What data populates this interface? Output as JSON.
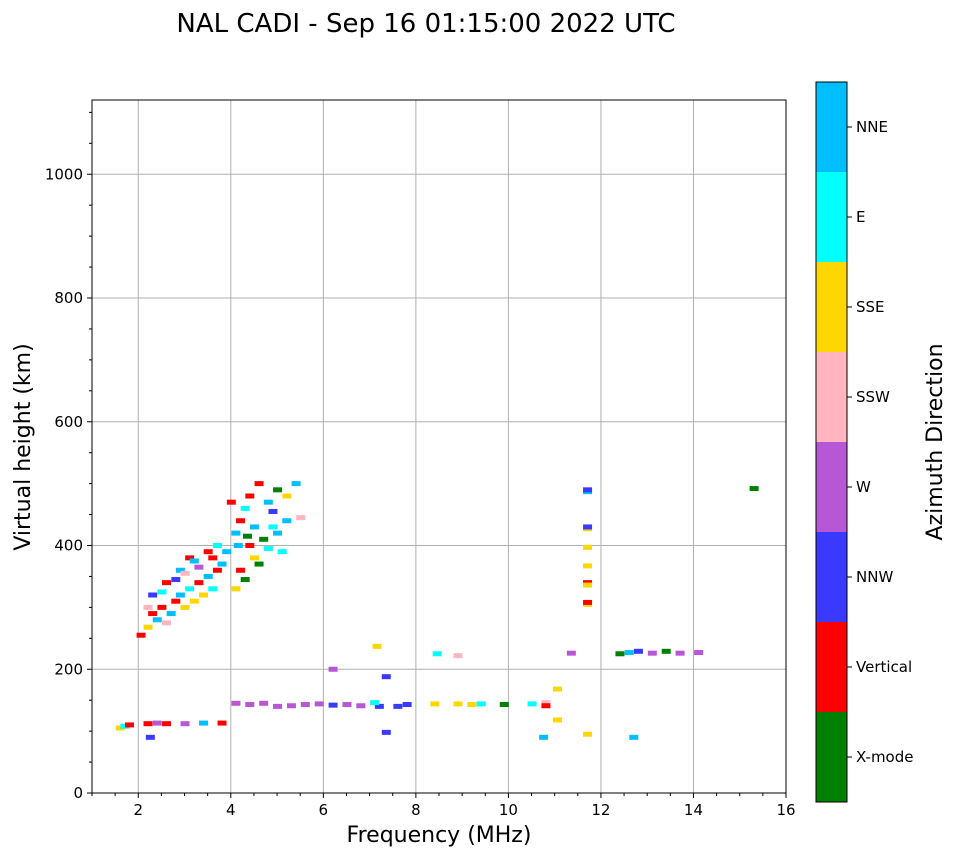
{
  "title": "NAL CADI - Sep 16 01:15:00 2022 UTC",
  "chart_data": {
    "type": "scatter",
    "title": "NAL CADI - Sep 16 01:15:00 2022 UTC",
    "xlabel": "Frequency (MHz)",
    "ylabel": "Virtual height (km)",
    "xlim": [
      1,
      16
    ],
    "ylim": [
      0,
      1120
    ],
    "xticks": [
      2,
      4,
      6,
      8,
      10,
      12,
      14,
      16
    ],
    "yticks": [
      0,
      200,
      400,
      600,
      800,
      1000
    ],
    "grid": true,
    "colorbar": {
      "label": "Azimuth Direction",
      "categories": [
        {
          "name": "X-mode",
          "color": "#008000"
        },
        {
          "name": "Vertical",
          "color": "#ff0000"
        },
        {
          "name": "NNW",
          "color": "#3a3aff"
        },
        {
          "name": "W",
          "color": "#b857d6"
        },
        {
          "name": "SSW",
          "color": "#ffb6c1"
        },
        {
          "name": "SSE",
          "color": "#ffd700"
        },
        {
          "name": "E",
          "color": "#00ffff"
        },
        {
          "name": "NNE",
          "color": "#00bfff"
        }
      ]
    },
    "points": [
      {
        "f": 1.6,
        "h": 105,
        "az": "SSE"
      },
      {
        "f": 1.7,
        "h": 108,
        "az": "E"
      },
      {
        "f": 1.8,
        "h": 110,
        "az": "Vertical"
      },
      {
        "f": 2.2,
        "h": 112,
        "az": "Vertical"
      },
      {
        "f": 2.4,
        "h": 113,
        "az": "W"
      },
      {
        "f": 2.6,
        "h": 112,
        "az": "Vertical"
      },
      {
        "f": 3.0,
        "h": 112,
        "az": "W"
      },
      {
        "f": 3.4,
        "h": 113,
        "az": "NNE"
      },
      {
        "f": 3.8,
        "h": 113,
        "az": "Vertical"
      },
      {
        "f": 2.25,
        "h": 90,
        "az": "NNW"
      },
      {
        "f": 2.05,
        "h": 255,
        "az": "Vertical"
      },
      {
        "f": 2.2,
        "h": 268,
        "az": "SSE"
      },
      {
        "f": 2.3,
        "h": 290,
        "az": "Vertical"
      },
      {
        "f": 2.4,
        "h": 280,
        "az": "NNE"
      },
      {
        "f": 2.5,
        "h": 300,
        "az": "Vertical"
      },
      {
        "f": 2.6,
        "h": 275,
        "az": "SSW"
      },
      {
        "f": 2.7,
        "h": 290,
        "az": "NNE"
      },
      {
        "f": 2.8,
        "h": 310,
        "az": "Vertical"
      },
      {
        "f": 2.9,
        "h": 320,
        "az": "NNE"
      },
      {
        "f": 3.0,
        "h": 300,
        "az": "SSE"
      },
      {
        "f": 3.1,
        "h": 330,
        "az": "E"
      },
      {
        "f": 3.2,
        "h": 310,
        "az": "SSE"
      },
      {
        "f": 3.3,
        "h": 340,
        "az": "Vertical"
      },
      {
        "f": 3.4,
        "h": 320,
        "az": "SSE"
      },
      {
        "f": 3.5,
        "h": 350,
        "az": "NNE"
      },
      {
        "f": 3.6,
        "h": 330,
        "az": "E"
      },
      {
        "f": 3.7,
        "h": 360,
        "az": "Vertical"
      },
      {
        "f": 3.8,
        "h": 370,
        "az": "NNE"
      },
      {
        "f": 2.3,
        "h": 320,
        "az": "NNW"
      },
      {
        "f": 2.6,
        "h": 340,
        "az": "Vertical"
      },
      {
        "f": 2.9,
        "h": 360,
        "az": "NNE"
      },
      {
        "f": 3.1,
        "h": 380,
        "az": "Vertical"
      },
      {
        "f": 3.3,
        "h": 365,
        "az": "W"
      },
      {
        "f": 3.5,
        "h": 390,
        "az": "Vertical"
      },
      {
        "f": 3.7,
        "h": 400,
        "az": "E"
      },
      {
        "f": 2.2,
        "h": 300,
        "az": "SSW"
      },
      {
        "f": 2.5,
        "h": 325,
        "az": "E"
      },
      {
        "f": 2.8,
        "h": 345,
        "az": "NNW"
      },
      {
        "f": 3.0,
        "h": 355,
        "az": "SSW"
      },
      {
        "f": 3.2,
        "h": 375,
        "az": "NNE"
      },
      {
        "f": 3.6,
        "h": 380,
        "az": "Vertical"
      },
      {
        "f": 3.9,
        "h": 390,
        "az": "NNE"
      },
      {
        "f": 4.1,
        "h": 330,
        "az": "SSE"
      },
      {
        "f": 4.2,
        "h": 360,
        "az": "Vertical"
      },
      {
        "f": 4.3,
        "h": 345,
        "az": "X-mode"
      },
      {
        "f": 4.4,
        "h": 400,
        "az": "Vertical"
      },
      {
        "f": 4.5,
        "h": 380,
        "az": "SSE"
      },
      {
        "f": 4.6,
        "h": 370,
        "az": "X-mode"
      },
      {
        "f": 4.7,
        "h": 410,
        "az": "X-mode"
      },
      {
        "f": 4.8,
        "h": 395,
        "az": "E"
      },
      {
        "f": 4.9,
        "h": 430,
        "az": "E"
      },
      {
        "f": 5.0,
        "h": 420,
        "az": "NNE"
      },
      {
        "f": 5.1,
        "h": 390,
        "az": "E"
      },
      {
        "f": 5.2,
        "h": 440,
        "az": "NNE"
      },
      {
        "f": 4.1,
        "h": 420,
        "az": "NNE"
      },
      {
        "f": 4.2,
        "h": 440,
        "az": "Vertical"
      },
      {
        "f": 4.3,
        "h": 460,
        "az": "E"
      },
      {
        "f": 4.4,
        "h": 480,
        "az": "Vertical"
      },
      {
        "f": 4.6,
        "h": 500,
        "az": "Vertical"
      },
      {
        "f": 4.8,
        "h": 470,
        "az": "NNE"
      },
      {
        "f": 5.0,
        "h": 490,
        "az": "X-mode"
      },
      {
        "f": 5.2,
        "h": 480,
        "az": "SSE"
      },
      {
        "f": 5.4,
        "h": 500,
        "az": "NNE"
      },
      {
        "f": 5.5,
        "h": 445,
        "az": "SSW"
      },
      {
        "f": 4.9,
        "h": 455,
        "az": "NNW"
      },
      {
        "f": 4.5,
        "h": 430,
        "az": "NNE"
      },
      {
        "f": 4.0,
        "h": 470,
        "az": "Vertical"
      },
      {
        "f": 4.15,
        "h": 400,
        "az": "NNE"
      },
      {
        "f": 4.35,
        "h": 415,
        "az": "X-mode"
      },
      {
        "f": 4.1,
        "h": 145,
        "az": "W"
      },
      {
        "f": 4.4,
        "h": 143,
        "az": "W"
      },
      {
        "f": 4.7,
        "h": 145,
        "az": "W"
      },
      {
        "f": 5.0,
        "h": 140,
        "az": "W"
      },
      {
        "f": 5.3,
        "h": 141,
        "az": "W"
      },
      {
        "f": 5.6,
        "h": 143,
        "az": "W"
      },
      {
        "f": 5.9,
        "h": 144,
        "az": "W"
      },
      {
        "f": 6.2,
        "h": 142,
        "az": "NNW"
      },
      {
        "f": 6.5,
        "h": 143,
        "az": "W"
      },
      {
        "f": 6.8,
        "h": 141,
        "az": "W"
      },
      {
        "f": 7.2,
        "h": 140,
        "az": "NNW"
      },
      {
        "f": 7.1,
        "h": 146,
        "az": "E"
      },
      {
        "f": 7.6,
        "h": 140,
        "az": "NNW"
      },
      {
        "f": 7.8,
        "h": 143,
        "az": "NNW"
      },
      {
        "f": 6.2,
        "h": 200,
        "az": "W"
      },
      {
        "f": 7.15,
        "h": 237,
        "az": "SSE"
      },
      {
        "f": 7.35,
        "h": 188,
        "az": "NNW"
      },
      {
        "f": 7.35,
        "h": 98,
        "az": "NNW"
      },
      {
        "f": 8.4,
        "h": 144,
        "az": "SSE"
      },
      {
        "f": 8.9,
        "h": 144,
        "az": "SSE"
      },
      {
        "f": 9.2,
        "h": 143,
        "az": "SSE"
      },
      {
        "f": 9.4,
        "h": 144,
        "az": "E"
      },
      {
        "f": 9.9,
        "h": 143,
        "az": "X-mode"
      },
      {
        "f": 10.5,
        "h": 144,
        "az": "E"
      },
      {
        "f": 10.8,
        "h": 146,
        "az": "SSW"
      },
      {
        "f": 10.8,
        "h": 141,
        "az": "Vertical"
      },
      {
        "f": 8.45,
        "h": 225,
        "az": "E"
      },
      {
        "f": 8.9,
        "h": 222,
        "az": "SSW"
      },
      {
        "f": 10.75,
        "h": 90,
        "az": "NNE"
      },
      {
        "f": 11.05,
        "h": 168,
        "az": "SSE"
      },
      {
        "f": 11.05,
        "h": 118,
        "az": "SSE"
      },
      {
        "f": 11.35,
        "h": 226,
        "az": "W"
      },
      {
        "f": 11.7,
        "h": 95,
        "az": "SSE"
      },
      {
        "f": 11.7,
        "h": 305,
        "az": "SSE"
      },
      {
        "f": 11.7,
        "h": 308,
        "az": "Vertical"
      },
      {
        "f": 11.7,
        "h": 340,
        "az": "Vertical"
      },
      {
        "f": 11.7,
        "h": 336,
        "az": "SSE"
      },
      {
        "f": 11.7,
        "h": 367,
        "az": "SSE"
      },
      {
        "f": 11.7,
        "h": 397,
        "az": "SSE"
      },
      {
        "f": 11.7,
        "h": 427,
        "az": "SSE"
      },
      {
        "f": 11.7,
        "h": 430,
        "az": "NNW"
      },
      {
        "f": 11.7,
        "h": 487,
        "az": "NNE"
      },
      {
        "f": 11.7,
        "h": 490,
        "az": "NNW"
      },
      {
        "f": 12.4,
        "h": 225,
        "az": "X-mode"
      },
      {
        "f": 12.6,
        "h": 227,
        "az": "NNE"
      },
      {
        "f": 12.8,
        "h": 229,
        "az": "NNW"
      },
      {
        "f": 13.1,
        "h": 226,
        "az": "W"
      },
      {
        "f": 13.4,
        "h": 229,
        "az": "X-mode"
      },
      {
        "f": 13.7,
        "h": 226,
        "az": "W"
      },
      {
        "f": 14.1,
        "h": 227,
        "az": "W"
      },
      {
        "f": 12.7,
        "h": 90,
        "az": "NNE"
      },
      {
        "f": 15.3,
        "h": 492,
        "az": "X-mode"
      }
    ]
  }
}
